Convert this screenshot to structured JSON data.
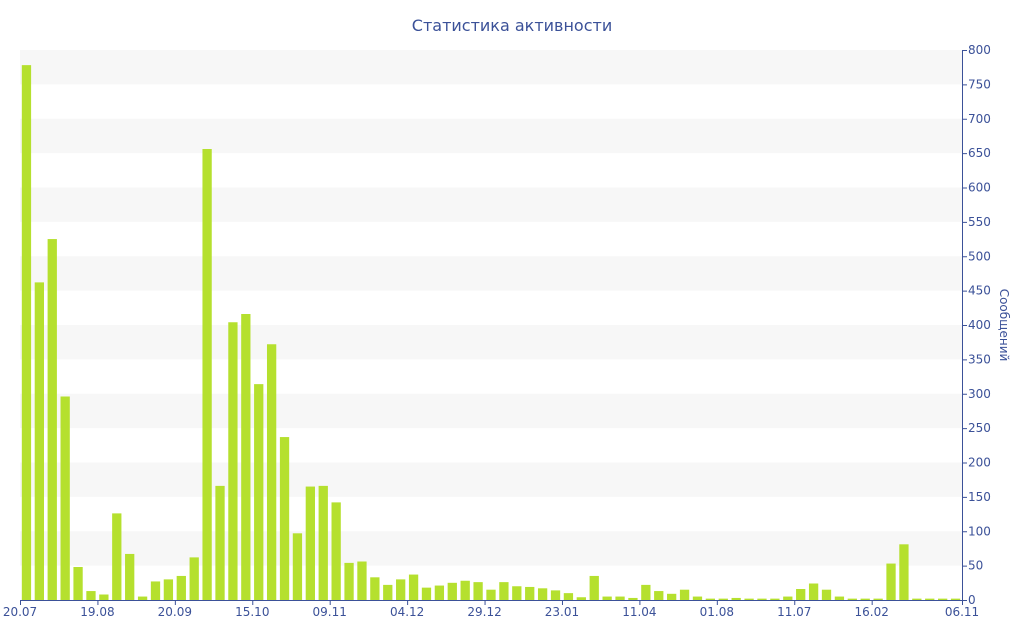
{
  "chart_data": {
    "type": "bar",
    "title": "Статистика активности",
    "ylabel": "Сообщений",
    "xlabel": "",
    "ylim": [
      0,
      800
    ],
    "y_ticks": [
      0,
      50,
      100,
      150,
      200,
      250,
      300,
      350,
      400,
      450,
      500,
      550,
      600,
      650,
      700,
      750,
      800
    ],
    "x_tick_labels": [
      {
        "label": "20.07",
        "index": 0
      },
      {
        "label": "19.08",
        "index": 6
      },
      {
        "label": "20.09",
        "index": 12
      },
      {
        "label": "15.10",
        "index": 18
      },
      {
        "label": "09.11",
        "index": 24
      },
      {
        "label": "04.12",
        "index": 30
      },
      {
        "label": "29.12",
        "index": 36
      },
      {
        "label": "23.01",
        "index": 42
      },
      {
        "label": "11.04",
        "index": 48
      },
      {
        "label": "01.08",
        "index": 54
      },
      {
        "label": "11.07",
        "index": 60
      },
      {
        "label": "16.02",
        "index": 66
      },
      {
        "label": "06.11",
        "index": 72
      }
    ],
    "values": [
      778,
      462,
      525,
      296,
      48,
      13,
      8,
      126,
      67,
      5,
      27,
      30,
      35,
      62,
      656,
      166,
      404,
      416,
      314,
      372,
      237,
      97,
      165,
      166,
      142,
      54,
      56,
      33,
      22,
      30,
      37,
      18,
      21,
      25,
      28,
      26,
      15,
      26,
      20,
      19,
      17,
      14,
      10,
      4,
      35,
      5,
      5,
      3,
      22,
      13,
      9,
      15,
      5,
      2,
      2,
      3,
      2,
      2,
      2,
      5,
      16,
      24,
      15,
      5,
      2,
      2,
      2,
      53,
      81,
      2,
      2,
      2,
      2
    ],
    "bar_color": "#b5e02e",
    "grid": true,
    "grid_band_color": "#f7f7f7",
    "axis_color": "#3b5198"
  }
}
